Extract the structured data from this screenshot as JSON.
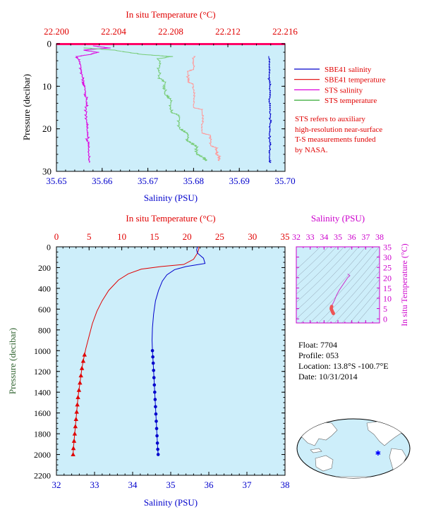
{
  "chart_data": [
    {
      "type": "line",
      "title": "",
      "top_xlabel": "In situ Temperature (°C)",
      "xlabel": "Salinity (PSU)",
      "ylabel": "Pressure (decibar)",
      "salinity_lim": [
        35.65,
        35.7
      ],
      "salinity_ticks": [
        "35.65",
        "35.66",
        "35.67",
        "35.68",
        "35.69",
        "35.70"
      ],
      "temperature_lim": [
        22.2,
        22.216
      ],
      "temperature_ticks": [
        "22.200",
        "22.204",
        "22.208",
        "22.212",
        "22.216"
      ],
      "pressure_lim": [
        0,
        30
      ],
      "pressure_ticks": [
        "0",
        "10",
        "20",
        "30"
      ],
      "legend": [
        {
          "name": "SBE41 salinity",
          "color": "#0000cc"
        },
        {
          "name": "SBE41 temperature",
          "color": "#e00000"
        },
        {
          "name": "STS salinity",
          "color": "#dd00dd"
        },
        {
          "name": "STS temperature",
          "color": "#33aa33"
        }
      ],
      "note_lines": [
        "STS refers to auxiliary",
        "high-resolution near-surface",
        "T-S measurements funded",
        "by NASA."
      ],
      "series": [
        {
          "name": "SBE41 salinity",
          "axis": "salinity",
          "points": [
            [
              35.6965,
              3
            ],
            [
              35.6965,
              8
            ],
            [
              35.6967,
              10
            ],
            [
              35.6966,
              14
            ],
            [
              35.6968,
              18
            ],
            [
              35.6966,
              21
            ],
            [
              35.6967,
              24
            ],
            [
              35.6966,
              27
            ],
            [
              35.6967,
              28
            ]
          ]
        },
        {
          "name": "SBE41 temperature",
          "axis": "temperature",
          "points": [
            [
              22.2096,
              3
            ],
            [
              22.2096,
              6
            ],
            [
              22.2092,
              6.5
            ],
            [
              22.2092,
              9
            ],
            [
              22.2096,
              9.5
            ],
            [
              22.2096,
              15
            ],
            [
              22.2102,
              15.5
            ],
            [
              22.2102,
              21
            ],
            [
              22.2108,
              21.5
            ],
            [
              22.2108,
              24
            ],
            [
              22.2112,
              24.5
            ],
            [
              22.2112,
              26
            ],
            [
              22.2114,
              26.5
            ],
            [
              22.2114,
              27.5
            ]
          ]
        },
        {
          "name": "STS salinity",
          "axis": "salinity",
          "points": [
            [
              35.658,
              0.5
            ],
            [
              35.6615,
              1
            ],
            [
              35.656,
              1.5
            ],
            [
              35.659,
              2
            ],
            [
              35.6575,
              2.5
            ],
            [
              35.6545,
              3
            ],
            [
              35.6553,
              5
            ],
            [
              35.6557,
              8
            ],
            [
              35.6562,
              10
            ],
            [
              35.6565,
              13
            ],
            [
              35.6565,
              16
            ],
            [
              35.6566,
              19
            ],
            [
              35.6568,
              22
            ],
            [
              35.657,
              25
            ],
            [
              35.6572,
              28
            ]
          ]
        },
        {
          "name": "STS temperature",
          "axis": "temperature",
          "points": [
            [
              22.202,
              1
            ],
            [
              22.204,
              1.5
            ],
            [
              22.206,
              2.5
            ],
            [
              22.208,
              3
            ],
            [
              22.2072,
              3.5
            ],
            [
              22.2072,
              8
            ],
            [
              22.2076,
              9
            ],
            [
              22.2076,
              12
            ],
            [
              22.208,
              13
            ],
            [
              22.208,
              16
            ],
            [
              22.2086,
              17
            ],
            [
              22.2086,
              20
            ],
            [
              22.2092,
              21
            ],
            [
              22.2092,
              23
            ],
            [
              22.2098,
              24
            ],
            [
              22.2098,
              26
            ],
            [
              22.2104,
              27
            ],
            [
              22.2104,
              27.5
            ]
          ]
        }
      ]
    },
    {
      "type": "line",
      "title": "",
      "top_xlabel": "In situ Temperature (°C)",
      "xlabel": "Salinity (PSU)",
      "ylabel": "Pressure (decibar)",
      "temperature_lim": [
        0,
        35
      ],
      "temperature_ticks": [
        "0",
        "5",
        "10",
        "15",
        "20",
        "25",
        "30",
        "35"
      ],
      "salinity_lim": [
        32,
        38
      ],
      "salinity_ticks": [
        "32",
        "33",
        "34",
        "35",
        "36",
        "37",
        "38"
      ],
      "pressure_lim": [
        0,
        2200
      ],
      "pressure_ticks": [
        "0",
        "200",
        "400",
        "600",
        "800",
        "1000",
        "1200",
        "1400",
        "1600",
        "1800",
        "2000",
        "2200"
      ],
      "series": [
        {
          "name": "Temperature",
          "axis": "temperature",
          "color": "#e00000",
          "marker": "triangle",
          "marker_from": 1000,
          "points": [
            [
              21.8,
              0
            ],
            [
              21.8,
              20
            ],
            [
              21.6,
              60
            ],
            [
              21.0,
              120
            ],
            [
              19.5,
              170
            ],
            [
              16.0,
              190
            ],
            [
              13.0,
              215
            ],
            [
              11.0,
              260
            ],
            [
              9.5,
              320
            ],
            [
              8.0,
              420
            ],
            [
              7.0,
              520
            ],
            [
              6.2,
              620
            ],
            [
              5.5,
              740
            ],
            [
              5.0,
              860
            ],
            [
              4.5,
              980
            ],
            [
              4.3,
              1040
            ],
            [
              4.1,
              1100
            ],
            [
              3.9,
              1170
            ],
            [
              3.75,
              1240
            ],
            [
              3.6,
              1310
            ],
            [
              3.45,
              1380
            ],
            [
              3.3,
              1450
            ],
            [
              3.2,
              1520
            ],
            [
              3.1,
              1590
            ],
            [
              3.0,
              1660
            ],
            [
              2.9,
              1730
            ],
            [
              2.8,
              1800
            ],
            [
              2.7,
              1870
            ],
            [
              2.6,
              1940
            ],
            [
              2.55,
              2000
            ]
          ]
        },
        {
          "name": "Salinity",
          "axis": "salinity",
          "color": "#0000cc",
          "marker": "circle",
          "marker_from": 1000,
          "points": [
            [
              35.7,
              0
            ],
            [
              35.68,
              30
            ],
            [
              35.7,
              60
            ],
            [
              35.86,
              110
            ],
            [
              35.9,
              160
            ],
            [
              35.4,
              190
            ],
            [
              35.1,
              220
            ],
            [
              34.9,
              270
            ],
            [
              34.78,
              330
            ],
            [
              34.68,
              420
            ],
            [
              34.6,
              520
            ],
            [
              34.55,
              650
            ],
            [
              34.52,
              780
            ],
            [
              34.51,
              900
            ],
            [
              34.52,
              1000
            ],
            [
              34.53,
              1060
            ],
            [
              34.54,
              1120
            ],
            [
              34.55,
              1190
            ],
            [
              34.56,
              1260
            ],
            [
              34.57,
              1330
            ],
            [
              34.58,
              1400
            ],
            [
              34.59,
              1470
            ],
            [
              34.6,
              1540
            ],
            [
              34.61,
              1610
            ],
            [
              34.62,
              1680
            ],
            [
              34.63,
              1750
            ],
            [
              34.64,
              1820
            ],
            [
              34.65,
              1890
            ],
            [
              34.66,
              1950
            ],
            [
              34.67,
              2000
            ]
          ]
        }
      ]
    },
    {
      "type": "scatter",
      "title": "",
      "xlabel": "Salinity (PSU)",
      "ylabel": "In situ Temperature (°C)",
      "salinity_lim": [
        32,
        38
      ],
      "salinity_ticks": [
        "32",
        "33",
        "34",
        "35",
        "36",
        "37",
        "38"
      ],
      "temperature_lim": [
        -2,
        35
      ],
      "temperature_ticks": [
        "0",
        "5",
        "10",
        "15",
        "20",
        "25",
        "30",
        "35"
      ],
      "points": [
        [
          35.7,
          21.8
        ],
        [
          35.86,
          21.0
        ],
        [
          35.7,
          20.0
        ],
        [
          35.4,
          17.0
        ],
        [
          35.1,
          14.0
        ],
        [
          34.9,
          11.5
        ],
        [
          34.78,
          9.5
        ],
        [
          34.68,
          8.0
        ],
        [
          34.6,
          7.0
        ],
        [
          34.55,
          6.0
        ],
        [
          34.52,
          5.3
        ],
        [
          34.52,
          4.8
        ],
        [
          34.55,
          4.3
        ],
        [
          34.58,
          3.9
        ],
        [
          34.6,
          3.5
        ],
        [
          34.63,
          3.1
        ],
        [
          34.66,
          2.8
        ],
        [
          34.67,
          2.6
        ]
      ]
    }
  ],
  "info": {
    "float_label": "Float:",
    "float_value": "7704",
    "profile_label": "Profile:",
    "profile_value": "053",
    "location_label": "Location:",
    "location_value": "13.8°S  -100.7°E",
    "date_label": "Date:",
    "date_value": "10/31/2014"
  },
  "map": {
    "marker_lat": -13.8,
    "marker_lon": -100.7,
    "marker_color": "#0000ff"
  },
  "colors": {
    "plot_bg": "#cdeefa",
    "temperature": "#e00000",
    "salinity": "#0000cc",
    "sts_salinity": "#dd00dd",
    "sts_temperature": "#33aa33",
    "ts_axis": "#cc00cc",
    "pressure_label": "#336633"
  }
}
